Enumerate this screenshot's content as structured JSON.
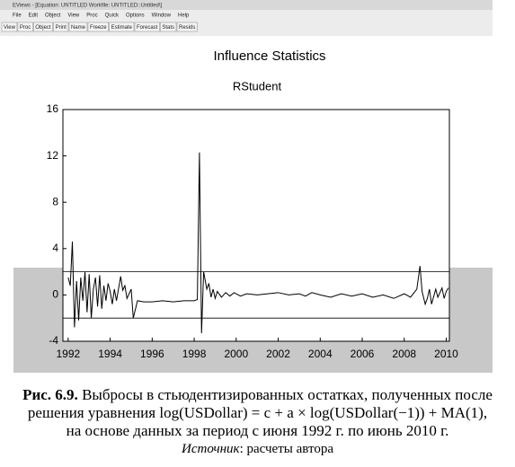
{
  "window": {
    "title": "EViews - [Equation: UNTITLED   Workfile: UNTITLED::Untitled\\]",
    "menu": [
      "File",
      "Edit",
      "Object",
      "View",
      "Proc",
      "Quick",
      "Options",
      "Window",
      "Help"
    ],
    "toolbar": [
      "View",
      "Proc",
      "Object",
      "Print",
      "Name",
      "Freeze",
      "Estimate",
      "Forecast",
      "Stats",
      "Resids"
    ]
  },
  "chart_data": {
    "type": "line",
    "title": "Influence Statistics",
    "subtitle": "RStudent",
    "color": "#000000",
    "x": [
      1992.0,
      1992.1,
      1992.2,
      1992.3,
      1992.4,
      1992.5,
      1992.6,
      1992.7,
      1992.8,
      1992.9,
      1993.0,
      1993.1,
      1993.2,
      1993.3,
      1993.4,
      1993.5,
      1993.6,
      1993.7,
      1993.8,
      1993.9,
      1994.0,
      1994.1,
      1994.2,
      1994.3,
      1994.5,
      1994.6,
      1994.7,
      1994.8,
      1995.0,
      1995.1,
      1995.3,
      1995.6,
      1996.0,
      1996.5,
      1997.0,
      1997.5,
      1998.0,
      1998.15,
      1998.25,
      1998.35,
      1998.45,
      1998.6,
      1998.7,
      1998.8,
      1998.9,
      1999.0,
      1999.1,
      1999.3,
      1999.5,
      1999.7,
      1999.9,
      2000.2,
      2000.5,
      2001.0,
      2001.5,
      2002.0,
      2002.5,
      2003.0,
      2003.3,
      2003.6,
      2004.0,
      2004.5,
      2005.0,
      2005.5,
      2006.0,
      2006.5,
      2007.0,
      2007.5,
      2008.0,
      2008.3,
      2008.6,
      2008.75,
      2008.85,
      2009.0,
      2009.1,
      2009.2,
      2009.3,
      2009.5,
      2009.6,
      2009.8,
      2009.9,
      2010.0,
      2010.1
    ],
    "values": [
      1.5,
      0.8,
      4.6,
      -2.8,
      1.2,
      -2.2,
      1.5,
      -0.5,
      2.0,
      -1.5,
      1.8,
      -2.0,
      0.5,
      1.5,
      -1.0,
      1.7,
      -1.2,
      0.8,
      -0.5,
      1.0,
      0.3,
      -0.8,
      0.5,
      -0.5,
      1.6,
      0.4,
      0.8,
      -0.3,
      0.5,
      -2.0,
      -0.5,
      -0.6,
      -0.6,
      -0.5,
      -0.6,
      -0.5,
      -0.5,
      -0.4,
      12.3,
      -3.3,
      2.0,
      0.5,
      1.0,
      -0.2,
      0.5,
      -0.3,
      0.3,
      -0.2,
      0.2,
      -0.1,
      0.2,
      -0.1,
      0.1,
      0.0,
      0.1,
      0.2,
      0.0,
      0.1,
      -0.1,
      0.2,
      0.0,
      -0.2,
      0.1,
      -0.1,
      0.1,
      -0.2,
      0.0,
      -0.3,
      0.1,
      -0.2,
      0.5,
      2.5,
      0.3,
      -0.8,
      -0.3,
      0.5,
      -0.8,
      0.5,
      -0.2,
      0.6,
      -0.3,
      0.3,
      0.6
    ],
    "reference_lines": [
      -2,
      2
    ],
    "xlim": [
      1991.75,
      2010.15
    ],
    "xticks": [
      1992,
      1994,
      1996,
      1998,
      2000,
      2002,
      2004,
      2006,
      2008,
      2010
    ],
    "ylim": [
      -4,
      16
    ],
    "yticks": [
      -4,
      0,
      4,
      8,
      12,
      16
    ]
  },
  "caption": {
    "label": "Рис. 6.9.",
    "line1": "Выбросы в стьюдентизированных остатках, полученных после",
    "line2": "решения уравнения log(USDollar) = c + a × log(USDollar(−1)) + MA(1),",
    "line3": "на основе данных за период с июня 1992 г. по июнь 2010 г.",
    "source_label": "Источник",
    "source_text": ": расчеты автора"
  }
}
